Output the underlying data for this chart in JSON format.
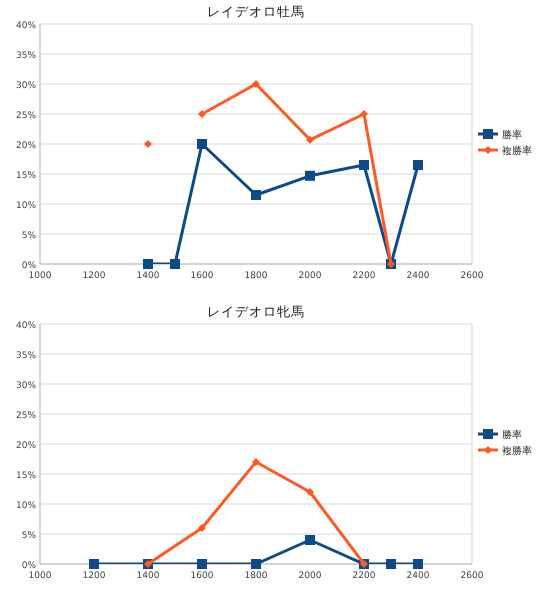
{
  "chart_data": [
    {
      "type": "line",
      "title": "レイデオロ牡馬",
      "xlim": [
        1000,
        2600
      ],
      "xticks": [
        1000,
        1200,
        1400,
        1600,
        1800,
        2000,
        2200,
        2400,
        2600
      ],
      "ylim": [
        0,
        40
      ],
      "yticks": [
        {
          "value": 0,
          "label": "0%"
        },
        {
          "value": 5,
          "label": "5%"
        },
        {
          "value": 10,
          "label": "10%"
        },
        {
          "value": 15,
          "label": "15%"
        },
        {
          "value": 20,
          "label": "20%"
        },
        {
          "value": 25,
          "label": "25%"
        },
        {
          "value": 30,
          "label": "30%"
        },
        {
          "value": 35,
          "label": "35%"
        },
        {
          "value": 40,
          "label": "40%"
        }
      ],
      "grid": "y",
      "legend": "right",
      "series": [
        {
          "name": "勝率",
          "color": "#0e4a86",
          "marker": "square",
          "x": [
            1400,
            1500,
            1600,
            1800,
            2000,
            2200,
            2300,
            2400
          ],
          "values": [
            0,
            0,
            20,
            11.5,
            14.7,
            16.5,
            0,
            16.5
          ]
        },
        {
          "name": "複勝率",
          "color": "#ff5a26",
          "marker": "diamond",
          "x": [
            1400,
            1500,
            1600,
            1800,
            2000,
            2200,
            2300
          ],
          "values": [
            20,
            null,
            25,
            30,
            20.7,
            25,
            0
          ]
        }
      ]
    },
    {
      "type": "line",
      "title": "レイデオロ牝馬",
      "xlim": [
        1000,
        2600
      ],
      "xticks": [
        1000,
        1200,
        1400,
        1600,
        1800,
        2000,
        2200,
        2400,
        2600
      ],
      "ylim": [
        0,
        40
      ],
      "yticks": [
        {
          "value": 0,
          "label": "0%"
        },
        {
          "value": 5,
          "label": "5%"
        },
        {
          "value": 10,
          "label": "10%"
        },
        {
          "value": 15,
          "label": "15%"
        },
        {
          "value": 20,
          "label": "20%"
        },
        {
          "value": 25,
          "label": "25%"
        },
        {
          "value": 30,
          "label": "30%"
        },
        {
          "value": 35,
          "label": "35%"
        },
        {
          "value": 40,
          "label": "40%"
        }
      ],
      "grid": "y",
      "legend": "right",
      "series": [
        {
          "name": "勝率",
          "color": "#0e4a86",
          "marker": "square",
          "x": [
            1200,
            1400,
            1600,
            1800,
            2000,
            2200,
            2300,
            2400
          ],
          "values": [
            0,
            0,
            0,
            0,
            4,
            0,
            0,
            0
          ]
        },
        {
          "name": "複勝率",
          "color": "#ff5a26",
          "marker": "diamond",
          "x": [
            1400,
            1600,
            1800,
            2000,
            2200
          ],
          "values": [
            0,
            6,
            17,
            12,
            0
          ]
        }
      ]
    }
  ]
}
